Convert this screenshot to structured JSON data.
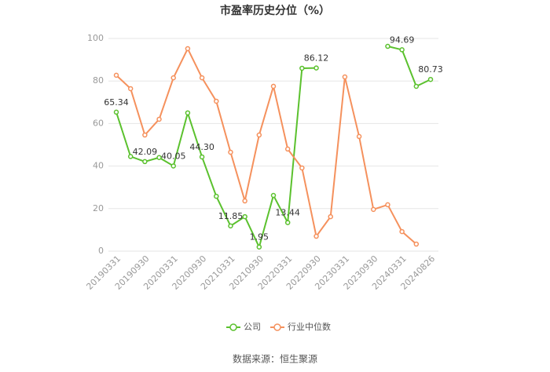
{
  "chart_data": {
    "type": "line",
    "title": "市盈率历史分位（%）",
    "categories": [
      "20190331",
      null,
      "20190930",
      null,
      "20200331",
      null,
      "20200930",
      null,
      "20210331",
      null,
      "20210930",
      null,
      "20220331",
      null,
      "20220930",
      null,
      "20230331",
      null,
      "20230930",
      null,
      "20240331",
      null,
      "20240826"
    ],
    "series": [
      {
        "name": "公司",
        "color": "#5bc12e",
        "values": [
          65.34,
          44.5,
          42.09,
          44,
          40.05,
          65,
          44.3,
          25.8,
          11.85,
          16.2,
          1.95,
          26.2,
          13.44,
          86,
          86.12,
          null,
          null,
          null,
          null,
          96.3,
          94.69,
          77.5,
          80.73
        ],
        "value_labels": [
          "65.34",
          null,
          "42.09",
          null,
          "40.05",
          null,
          "44.30",
          null,
          "11.85",
          null,
          "1.95",
          null,
          "13.44",
          null,
          "86.12",
          null,
          null,
          null,
          null,
          null,
          "94.69",
          null,
          "80.73"
        ]
      },
      {
        "name": "行业中位数",
        "color": "#f5915d",
        "values": [
          82.7,
          76.4,
          54.6,
          62,
          81.5,
          95.2,
          81.5,
          70.5,
          46.5,
          23.6,
          54.6,
          77.5,
          48,
          39.1,
          7,
          16.2,
          81.9,
          53.9,
          19.6,
          21.8,
          9.2,
          3.3,
          null
        ]
      }
    ],
    "ylim": [
      0,
      100
    ],
    "yticks": [
      0,
      20,
      40,
      60,
      80,
      100
    ],
    "grid": true,
    "legend": "bottom",
    "source": "数据来源：恒生聚源"
  }
}
